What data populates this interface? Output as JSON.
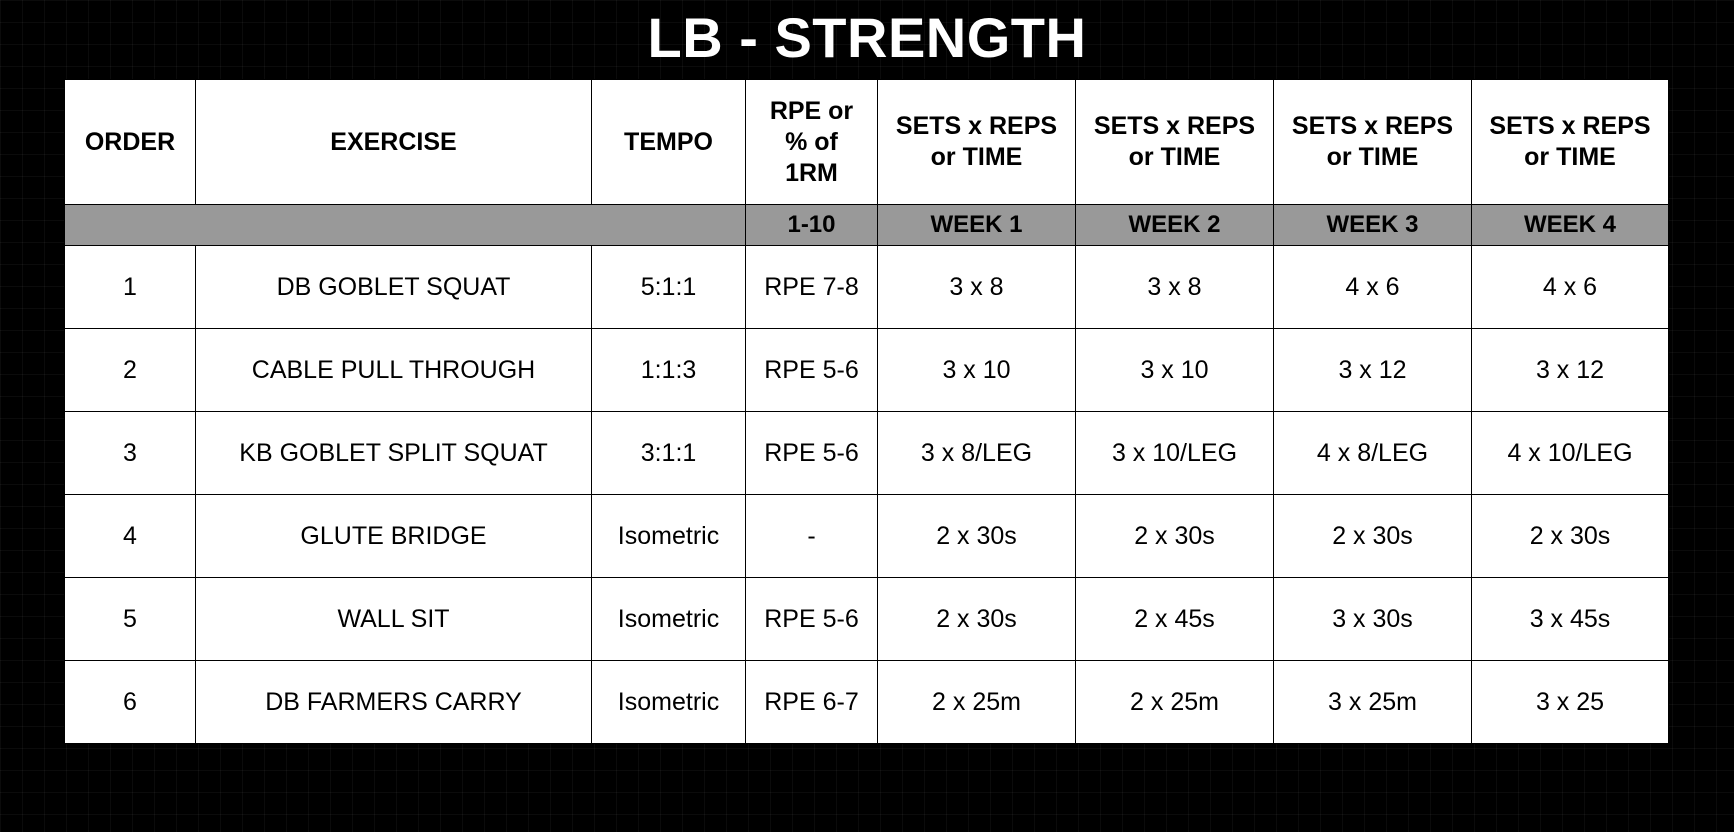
{
  "title": "LB - STRENGTH",
  "headers": {
    "order": "ORDER",
    "exercise": "EXERCISE",
    "tempo": "TEMPO",
    "rpe": "RPE or\n% of\n1RM",
    "week1": "SETS x REPS\nor TIME",
    "week2": "SETS x REPS\nor TIME",
    "week3": "SETS x REPS\nor TIME",
    "week4": "SETS x REPS\nor TIME"
  },
  "subheader": {
    "rpe": "1-10",
    "week1": "WEEK 1",
    "week2": "WEEK 2",
    "week3": "WEEK 3",
    "week4": "WEEK 4"
  },
  "rows": [
    {
      "order": "1",
      "exercise": "DB GOBLET SQUAT",
      "tempo": "5:1:1",
      "rpe": "RPE 7-8",
      "week1": "3 x 8",
      "week2": "3 x 8",
      "week3": "4 x 6",
      "week4": "4 x 6"
    },
    {
      "order": "2",
      "exercise": "CABLE PULL THROUGH",
      "tempo": "1:1:3",
      "rpe": "RPE 5-6",
      "week1": "3 x 10",
      "week2": "3 x 10",
      "week3": "3 x 12",
      "week4": "3 x 12"
    },
    {
      "order": "3",
      "exercise": "KB GOBLET SPLIT SQUAT",
      "tempo": "3:1:1",
      "rpe": "RPE 5-6",
      "week1": "3 x 8/LEG",
      "week2": "3 x 10/LEG",
      "week3": "4 x 8/LEG",
      "week4": "4 x 10/LEG"
    },
    {
      "order": "4",
      "exercise": "GLUTE BRIDGE",
      "tempo": "Isometric",
      "rpe": "-",
      "week1": "2 x 30s",
      "week2": "2 x 30s",
      "week3": "2 x 30s",
      "week4": "2 x 30s"
    },
    {
      "order": "5",
      "exercise": "WALL SIT",
      "tempo": "Isometric",
      "rpe": "RPE 5-6",
      "week1": "2 x 30s",
      "week2": "2 x 45s",
      "week3": "3 x 30s",
      "week4": "3 x 45s"
    },
    {
      "order": "6",
      "exercise": "DB FARMERS CARRY",
      "tempo": "Isometric",
      "rpe": "RPE 6-7",
      "week1": "2 x 25m",
      "week2": "2 x 25m",
      "week3": "3 x 25m",
      "week4": "3 x 25"
    }
  ]
}
